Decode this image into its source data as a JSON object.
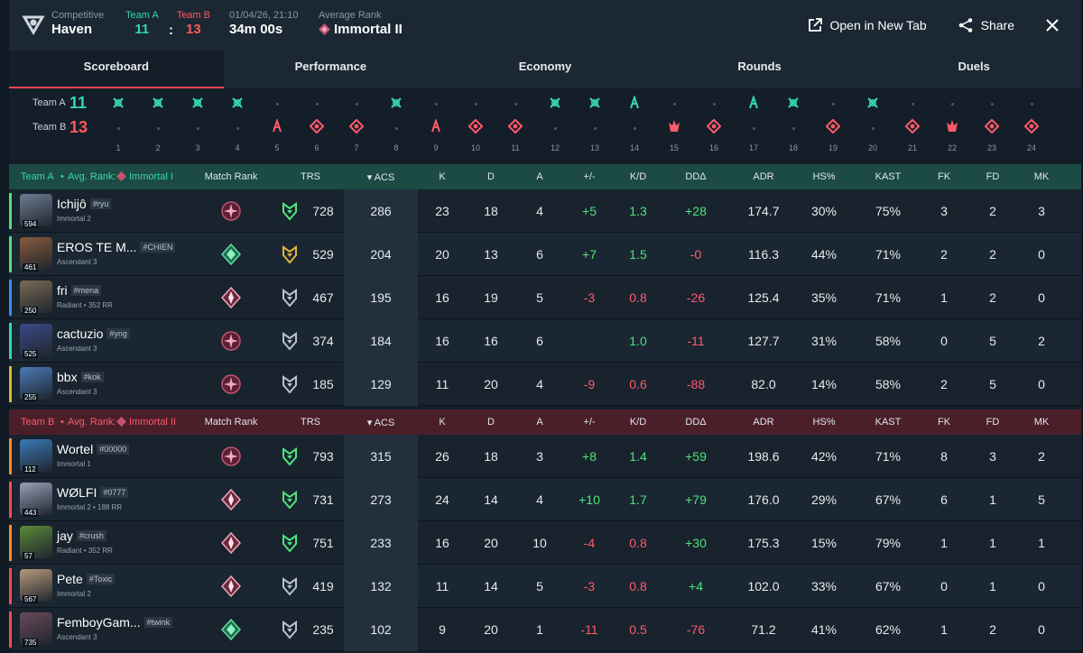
{
  "header": {
    "mode_label": "Competitive",
    "map": "Haven",
    "teamA_label": "Team A",
    "teamB_label": "Team B",
    "teamA_score": "11",
    "teamB_score": "13",
    "datetime": "01/04/26, 21:10",
    "duration": "34m 00s",
    "avg_rank_label": "Average Rank",
    "avg_rank": "Immortal II",
    "open_tab": "Open in New Tab",
    "share": "Share"
  },
  "tabs": [
    "Scoreboard",
    "Performance",
    "Economy",
    "Rounds",
    "Duels"
  ],
  "timeline": {
    "teamA_label": "Team A",
    "teamB_label": "Team B",
    "teamA_score": "11",
    "teamB_score": "13",
    "rounds": [
      {
        "n": "1",
        "w": "A",
        "t": "defuse"
      },
      {
        "n": "2",
        "w": "A",
        "t": "defuse"
      },
      {
        "n": "3",
        "w": "A",
        "t": "defuse"
      },
      {
        "n": "4",
        "w": "A",
        "t": "defuse"
      },
      {
        "n": "5",
        "w": "B",
        "t": "elim"
      },
      {
        "n": "6",
        "w": "B",
        "t": "skull"
      },
      {
        "n": "7",
        "w": "B",
        "t": "skull"
      },
      {
        "n": "8",
        "w": "A",
        "t": "defuse"
      },
      {
        "n": "9",
        "w": "B",
        "t": "elim"
      },
      {
        "n": "10",
        "w": "B",
        "t": "skull"
      },
      {
        "n": "11",
        "w": "B",
        "t": "skull"
      },
      {
        "n": "12",
        "w": "A",
        "t": "defuse"
      },
      {
        "n": "13",
        "w": "A",
        "t": "defuse"
      },
      {
        "n": "14",
        "w": "A",
        "t": "elim"
      },
      {
        "n": "15",
        "w": "B",
        "t": "spike"
      },
      {
        "n": "16",
        "w": "B",
        "t": "skull"
      },
      {
        "n": "17",
        "w": "A",
        "t": "elim"
      },
      {
        "n": "18",
        "w": "A",
        "t": "defuse"
      },
      {
        "n": "19",
        "w": "B",
        "t": "skull"
      },
      {
        "n": "20",
        "w": "A",
        "t": "defuse"
      },
      {
        "n": "21",
        "w": "B",
        "t": "skull"
      },
      {
        "n": "22",
        "w": "B",
        "t": "spike"
      },
      {
        "n": "23",
        "w": "B",
        "t": "skull"
      },
      {
        "n": "24",
        "w": "B",
        "t": "skull"
      }
    ]
  },
  "columns": [
    "Match Rank",
    "TRS",
    "ACS",
    "K",
    "D",
    "A",
    "+/-",
    "K/D",
    "DDΔ",
    "ADR",
    "HS%",
    "KAST",
    "FK",
    "FD",
    "MK"
  ],
  "teamA": {
    "label": "Team A",
    "avg_label": "Avg. Rank:",
    "avg_rank": "Immortal I",
    "bar_color": "#4ee37a",
    "players": [
      {
        "name": "Ichijô",
        "tag": "#ryu",
        "rank": "Immortal 2",
        "level": "594",
        "trs": "728",
        "acs": "286",
        "k": "23",
        "d": "18",
        "a": "4",
        "pm": "+5",
        "kd": "1.3",
        "dd": "+28",
        "adr": "174.7",
        "hs": "30%",
        "kast": "75%",
        "fk": "3",
        "fd": "2",
        "mk": "3",
        "bar": "#4ee37a",
        "av": "#6e7c93",
        "mr": "imm",
        "tr": "green"
      },
      {
        "name": "EROS TE M...",
        "tag": "#CHIEN",
        "rank": "Ascendant 3",
        "level": "461",
        "trs": "529",
        "acs": "204",
        "k": "20",
        "d": "13",
        "a": "6",
        "pm": "+7",
        "kd": "1.5",
        "dd": "-0",
        "adr": "116.3",
        "hs": "44%",
        "kast": "71%",
        "fk": "2",
        "fd": "2",
        "mk": "0",
        "bar": "#4ee37a",
        "av": "#8a5a3c",
        "mr": "asc",
        "tr": "gold"
      },
      {
        "name": "fri",
        "tag": "#mena",
        "rank": "Radiant • 352 RR",
        "level": "250",
        "trs": "467",
        "acs": "195",
        "k": "16",
        "d": "19",
        "a": "5",
        "pm": "-3",
        "kd": "0.8",
        "dd": "-26",
        "adr": "125.4",
        "hs": "35%",
        "kast": "71%",
        "fk": "1",
        "fd": "2",
        "mk": "0",
        "bar": "#3a8cff",
        "av": "#7a6a52",
        "mr": "rad",
        "tr": "grey"
      },
      {
        "name": "cactuzio",
        "tag": "#yng",
        "rank": "Ascendant 3",
        "level": "525",
        "trs": "374",
        "acs": "184",
        "k": "16",
        "d": "16",
        "a": "6",
        "pm": "",
        "kd": "1.0",
        "dd": "-11",
        "adr": "127.7",
        "hs": "31%",
        "kast": "58%",
        "fk": "0",
        "fd": "5",
        "mk": "2",
        "bar": "#36d6b6",
        "av": "#3c4a8a",
        "mr": "imm",
        "tr": "grey"
      },
      {
        "name": "bbx",
        "tag": "#kok",
        "rank": "Ascendant 3",
        "level": "255",
        "trs": "185",
        "acs": "129",
        "k": "11",
        "d": "20",
        "a": "4",
        "pm": "-9",
        "kd": "0.6",
        "dd": "-88",
        "adr": "82.0",
        "hs": "14%",
        "kast": "58%",
        "fk": "2",
        "fd": "5",
        "mk": "0",
        "bar": "#e0b43a",
        "av": "#4a7ab8",
        "mr": "imm",
        "tr": "grey"
      }
    ]
  },
  "teamB": {
    "label": "Team B",
    "avg_label": "Avg. Rank:",
    "avg_rank": "Immortal II",
    "players": [
      {
        "name": "Wortel",
        "tag": "#00000",
        "rank": "Immortal 1",
        "level": "112",
        "trs": "793",
        "acs": "315",
        "k": "26",
        "d": "18",
        "a": "3",
        "pm": "+8",
        "kd": "1.4",
        "dd": "+59",
        "adr": "198.6",
        "hs": "42%",
        "kast": "71%",
        "fk": "8",
        "fd": "3",
        "mk": "2",
        "bar": "#ff8a2a",
        "av": "#3a7ab8",
        "mr": "imm",
        "tr": "green"
      },
      {
        "name": "WØLFI",
        "tag": "#0777",
        "rank": "Immortal 2 • 188 RR",
        "level": "443",
        "trs": "731",
        "acs": "273",
        "k": "24",
        "d": "14",
        "a": "4",
        "pm": "+10",
        "kd": "1.7",
        "dd": "+79",
        "adr": "176.0",
        "hs": "29%",
        "kast": "67%",
        "fk": "6",
        "fd": "1",
        "mk": "5",
        "bar": "#ff4655",
        "av": "#9aa0b8",
        "mr": "rad",
        "tr": "green"
      },
      {
        "name": "jay",
        "tag": "#crush",
        "rank": "Radiant • 352 RR",
        "level": "57",
        "trs": "751",
        "acs": "233",
        "k": "16",
        "d": "20",
        "a": "10",
        "pm": "-4",
        "kd": "0.8",
        "dd": "+30",
        "adr": "175.3",
        "hs": "15%",
        "kast": "79%",
        "fk": "1",
        "fd": "1",
        "mk": "1",
        "bar": "#ff8a2a",
        "av": "#5a8a3a",
        "mr": "rad",
        "tr": "green"
      },
      {
        "name": "Pete",
        "tag": "#Toxic",
        "rank": "Immortal 2",
        "level": "567",
        "trs": "419",
        "acs": "132",
        "k": "11",
        "d": "14",
        "a": "5",
        "pm": "-3",
        "kd": "0.8",
        "dd": "+4",
        "adr": "102.0",
        "hs": "33%",
        "kast": "67%",
        "fk": "0",
        "fd": "1",
        "mk": "0",
        "bar": "#ff4655",
        "av": "#b89a7a",
        "mr": "rad",
        "tr": "grey"
      },
      {
        "name": "FemboyGam...",
        "tag": "#twink",
        "rank": "Ascendant 3",
        "level": "735",
        "trs": "235",
        "acs": "102",
        "k": "9",
        "d": "20",
        "a": "1",
        "pm": "-11",
        "kd": "0.5",
        "dd": "-76",
        "adr": "71.2",
        "hs": "41%",
        "kast": "62%",
        "fk": "1",
        "fd": "2",
        "mk": "0",
        "bar": "#ff4655",
        "av": "#6a4a5a",
        "mr": "asc",
        "tr": "grey"
      }
    ]
  }
}
